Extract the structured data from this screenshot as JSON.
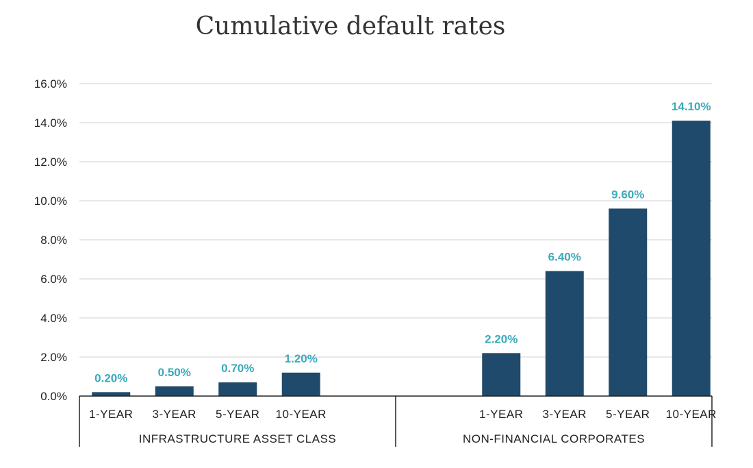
{
  "chart_data": {
    "type": "bar",
    "title": "Cumulative default rates",
    "ylim": [
      0,
      16
    ],
    "yticks": [
      "0.0%",
      "2.0%",
      "4.0%",
      "6.0%",
      "8.0%",
      "10.0%",
      "12.0%",
      "14.0%",
      "16.0%"
    ],
    "grid": true,
    "colors": {
      "bar": "#1f4a6b",
      "label": "#3aaabb",
      "grid": "#cfcfcf",
      "axis": "#222222"
    },
    "groups": [
      {
        "name": "INFRASTRUCTURE ASSET CLASS",
        "categories": [
          "1-YEAR",
          "3-YEAR",
          "5-YEAR",
          "10-YEAR"
        ],
        "values": [
          0.2,
          0.5,
          0.7,
          1.2
        ],
        "labels": [
          "0.20%",
          "0.50%",
          "0.70%",
          "1.20%"
        ]
      },
      {
        "name": "NON-FINANCIAL CORPORATES",
        "categories": [
          "1-YEAR",
          "3-YEAR",
          "5-YEAR",
          "10-YEAR"
        ],
        "values": [
          2.2,
          6.4,
          9.6,
          14.1
        ],
        "labels": [
          "2.20%",
          "6.40%",
          "9.60%",
          "14.10%"
        ]
      }
    ]
  }
}
